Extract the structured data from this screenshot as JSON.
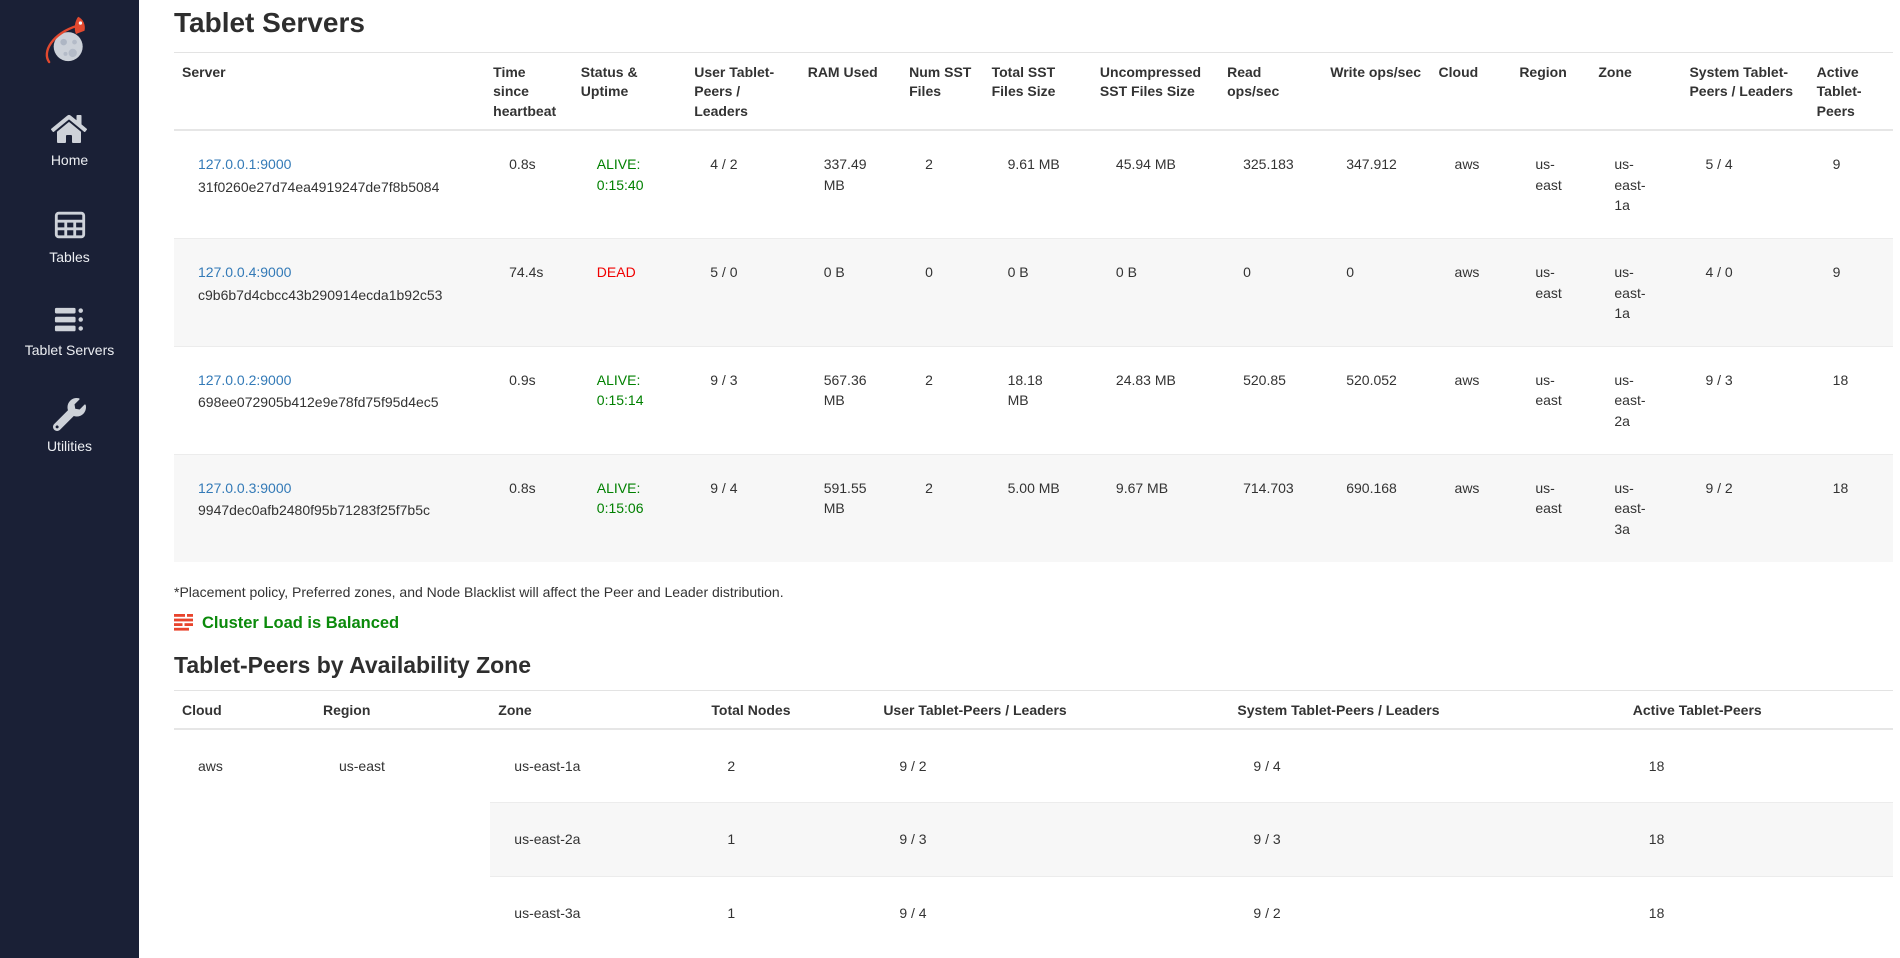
{
  "sidebar": {
    "logo_icon": "rocket-planet-logo",
    "items": [
      {
        "icon": "home-icon",
        "label": "Home"
      },
      {
        "icon": "tables-icon",
        "label": "Tables"
      },
      {
        "icon": "tablet-servers-icon",
        "label": "Tablet Servers"
      },
      {
        "icon": "utilities-icon",
        "label": "Utilities"
      }
    ]
  },
  "page": {
    "title": "Tablet Servers",
    "footnote": "*Placement policy, Preferred zones, and Node Blacklist will affect the Peer and Leader distribution.",
    "section2_title": "Tablet-Peers by Availability Zone"
  },
  "load_balance": {
    "icon": "load-balancer-icon",
    "label": "Cluster Load is Balanced"
  },
  "servers_table": {
    "headers": [
      "Server",
      "Time since heartbeat",
      "Status & Uptime",
      "User Tablet-Peers / Leaders",
      "RAM Used",
      "Num SST Files",
      "Total SST Files Size",
      "Uncompressed SST Files Size",
      "Read ops/sec",
      "Write ops/sec",
      "Cloud",
      "Region",
      "Zone",
      "System Tablet-Peers / Leaders",
      "Active Tablet-Peers"
    ],
    "rows": [
      {
        "address": "127.0.0.1:9000",
        "uuid": "31f0260e27d74ea4919247de7f8b5084",
        "heartbeat": "0.8s",
        "status_label": "ALIVE:",
        "uptime": "0:15:40",
        "state": "alive",
        "user_peers": "4 / 2",
        "ram": "337.49 MB",
        "num_sst": "2",
        "sst_size": "9.61 MB",
        "unc_sst_size": "45.94 MB",
        "read_ops": "325.183",
        "write_ops": "347.912",
        "cloud": "aws",
        "region": "us-east",
        "zone": "us-east-1a",
        "system_peers": "5 / 4",
        "active_peers": "9"
      },
      {
        "address": "127.0.0.4:9000",
        "uuid": "c9b6b7d4cbcc43b290914ecda1b92c53",
        "heartbeat": "74.4s",
        "status_label": "DEAD",
        "uptime": "",
        "state": "dead",
        "user_peers": "5 / 0",
        "ram": "0 B",
        "num_sst": "0",
        "sst_size": "0 B",
        "unc_sst_size": "0 B",
        "read_ops": "0",
        "write_ops": "0",
        "cloud": "aws",
        "region": "us-east",
        "zone": "us-east-1a",
        "system_peers": "4 / 0",
        "active_peers": "9"
      },
      {
        "address": "127.0.0.2:9000",
        "uuid": "698ee072905b412e9e78fd75f95d4ec5",
        "heartbeat": "0.9s",
        "status_label": "ALIVE:",
        "uptime": "0:15:14",
        "state": "alive",
        "user_peers": "9 / 3",
        "ram": "567.36 MB",
        "num_sst": "2",
        "sst_size": "18.18 MB",
        "unc_sst_size": "24.83 MB",
        "read_ops": "520.85",
        "write_ops": "520.052",
        "cloud": "aws",
        "region": "us-east",
        "zone": "us-east-2a",
        "system_peers": "9 / 3",
        "active_peers": "18"
      },
      {
        "address": "127.0.0.3:9000",
        "uuid": "9947dec0afb2480f95b71283f25f7b5c",
        "heartbeat": "0.8s",
        "status_label": "ALIVE:",
        "uptime": "0:15:06",
        "state": "alive",
        "user_peers": "9 / 4",
        "ram": "591.55 MB",
        "num_sst": "2",
        "sst_size": "5.00 MB",
        "unc_sst_size": "9.67 MB",
        "read_ops": "714.703",
        "write_ops": "690.168",
        "cloud": "aws",
        "region": "us-east",
        "zone": "us-east-3a",
        "system_peers": "9 / 2",
        "active_peers": "18"
      }
    ]
  },
  "zones_table": {
    "headers": [
      "Cloud",
      "Region",
      "Zone",
      "Total Nodes",
      "User Tablet-Peers / Leaders",
      "System Tablet-Peers / Leaders",
      "Active Tablet-Peers"
    ],
    "cloud": "aws",
    "region": "us-east",
    "rows": [
      {
        "zone": "us-east-1a",
        "total_nodes": "2",
        "user_peers": "9 / 2",
        "system_peers": "9 / 4",
        "active_peers": "18"
      },
      {
        "zone": "us-east-2a",
        "total_nodes": "1",
        "user_peers": "9 / 3",
        "system_peers": "9 / 3",
        "active_peers": "18"
      },
      {
        "zone": "us-east-3a",
        "total_nodes": "1",
        "user_peers": "9 / 4",
        "system_peers": "9 / 2",
        "active_peers": "18"
      }
    ]
  },
  "colors": {
    "sidebar_bg": "#1a2036",
    "link_blue": "#337ab7",
    "alive_green": "#008000",
    "dead_red": "#f00000",
    "balanced_green": "#0b8a0b",
    "accent_orange": "#e8432c",
    "stripe_gray": "#f7f7f7"
  }
}
